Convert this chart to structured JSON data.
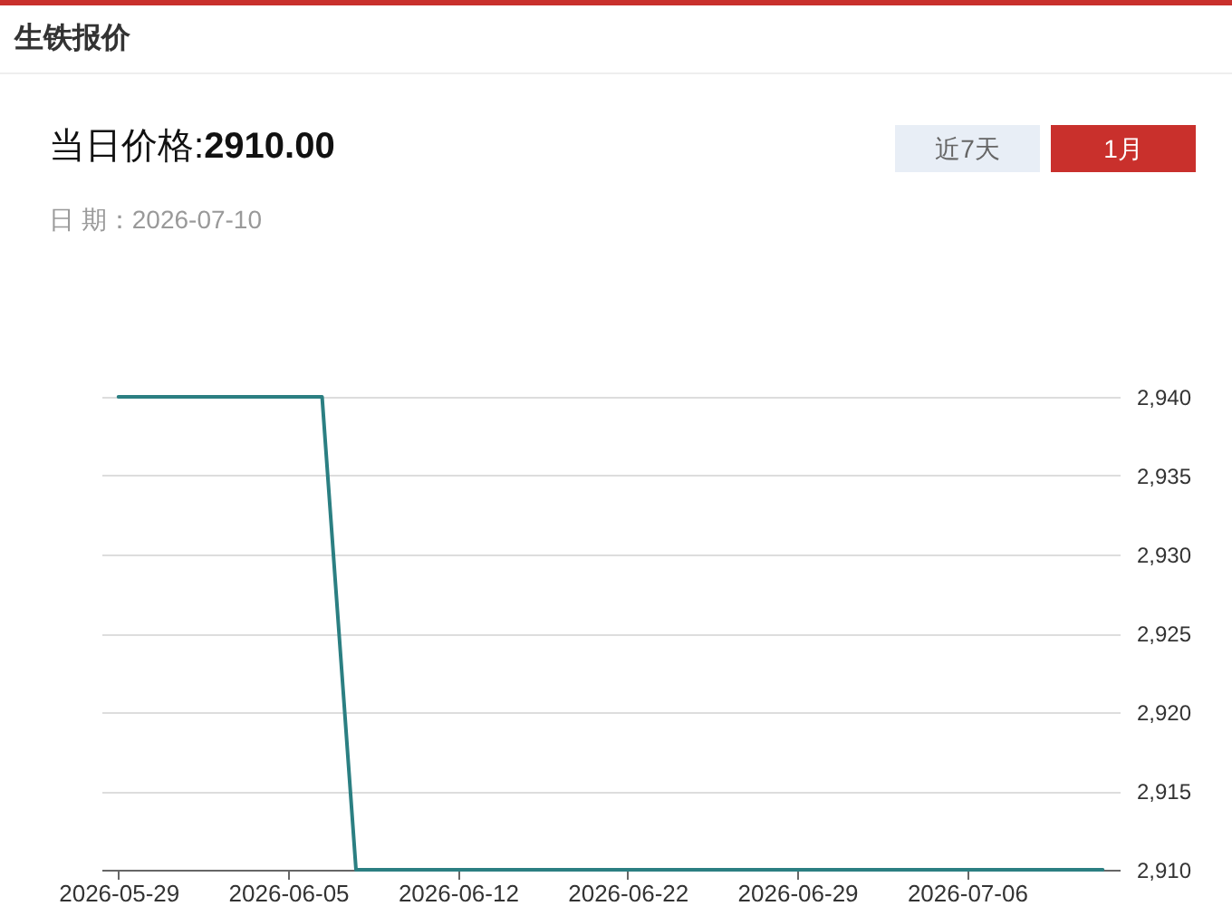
{
  "chart_data": {
    "type": "line",
    "title": "生铁报价",
    "subtitle": "当日价格:2910.00",
    "annotations": [
      "日 期：2026-07-10",
      "近7天",
      "1月"
    ],
    "categories": [
      "2026-05-29",
      null,
      null,
      null,
      null,
      "2026-06-05",
      null,
      null,
      null,
      null,
      "2026-06-12",
      null,
      null,
      null,
      null,
      "2026-06-22",
      null,
      null,
      null,
      null,
      "2026-06-29",
      null,
      null,
      null,
      null,
      "2026-07-06",
      null,
      null,
      null,
      null
    ],
    "series": [
      {
        "color": "#2b7f82",
        "values": [
          2940,
          2940,
          2940,
          2940,
          2940,
          2940,
          2940,
          2910,
          2910,
          2910,
          2910,
          2910,
          2910,
          2910,
          2910,
          2910,
          2910,
          2910,
          2910,
          2910,
          2910,
          2910,
          2910,
          2910,
          2910,
          2910,
          2910,
          2910,
          2910,
          2910
        ]
      }
    ],
    "ylim": [
      2910,
      2940
    ],
    "yticks": [
      {
        "value": 2910,
        "label": "2,910"
      },
      {
        "value": 2915,
        "label": "2,915"
      },
      {
        "value": 2920,
        "label": "2,920"
      },
      {
        "value": 2925,
        "label": "2,925"
      },
      {
        "value": 2930,
        "label": "2,930"
      },
      {
        "value": 2935,
        "label": "2,935"
      },
      {
        "value": 2940,
        "label": "2,940"
      }
    ],
    "grid": "y",
    "marker": "none",
    "line_style": "solid"
  }
}
